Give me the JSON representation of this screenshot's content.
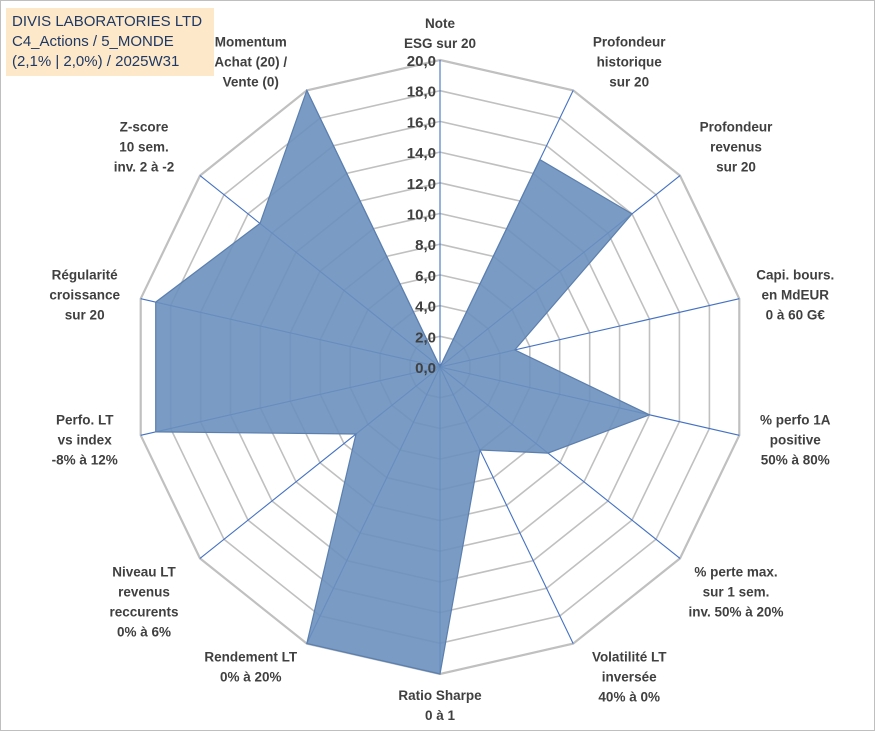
{
  "title_box": {
    "line1": "DIVIS LABORATORIES LTD",
    "line2": "C4_Actions / 5_MONDE",
    "line3": "(2,1% | 2,0%) / 2025W31"
  },
  "chart_data": {
    "type": "radar",
    "rmin": 0,
    "rmax": 20,
    "tick_step": 2,
    "tick_labels": [
      "0,0",
      "2,0",
      "4,0",
      "6,0",
      "8,0",
      "10,0",
      "12,0",
      "14,0",
      "16,0",
      "18,0",
      "20,0"
    ],
    "grid": true,
    "legend": "none",
    "colors": {
      "fill": "#6a90be",
      "stroke": "#5b7fae",
      "spoke": "#4472c4",
      "grid": "#c0c0c0",
      "text": "#404040"
    },
    "axes": [
      {
        "label": [
          "Note",
          "ESG sur 20"
        ],
        "value": 0
      },
      {
        "label": [
          "Profondeur",
          "historique",
          "sur 20"
        ],
        "value": 15
      },
      {
        "label": [
          "Profondeur",
          "revenus",
          "sur 20"
        ],
        "value": 16
      },
      {
        "label": [
          "Capi. bours.",
          "en MdEUR",
          "0 à 60 G€"
        ],
        "value": 5
      },
      {
        "label": [
          "% perfo 1A",
          "positive",
          "50% à 80%"
        ],
        "value": 14
      },
      {
        "label": [
          "% perte max.",
          "sur 1 sem.",
          "inv. 50% à 20%"
        ],
        "value": 9
      },
      {
        "label": [
          "Volatilité LT",
          "inversée",
          "40% à 0%"
        ],
        "value": 6
      },
      {
        "label": [
          "Ratio Sharpe",
          "0 à 1"
        ],
        "value": 20
      },
      {
        "label": [
          "Rendement LT",
          "0% à 20%"
        ],
        "value": 20
      },
      {
        "label": [
          "Niveau LT",
          "revenus",
          "reccurents",
          "0% à 6%"
        ],
        "value": 7
      },
      {
        "label": [
          "Perfo. LT",
          "vs index",
          "-8% à 12%"
        ],
        "value": 19
      },
      {
        "label": [
          "Régularité",
          "croissance",
          "sur 20"
        ],
        "value": 19
      },
      {
        "label": [
          "Z-score",
          "10 sem.",
          "inv. 2 à -2"
        ],
        "value": 15
      },
      {
        "label": [
          "Momentum",
          "Achat (20) /",
          "Vente (0)"
        ],
        "value": 20
      }
    ]
  }
}
